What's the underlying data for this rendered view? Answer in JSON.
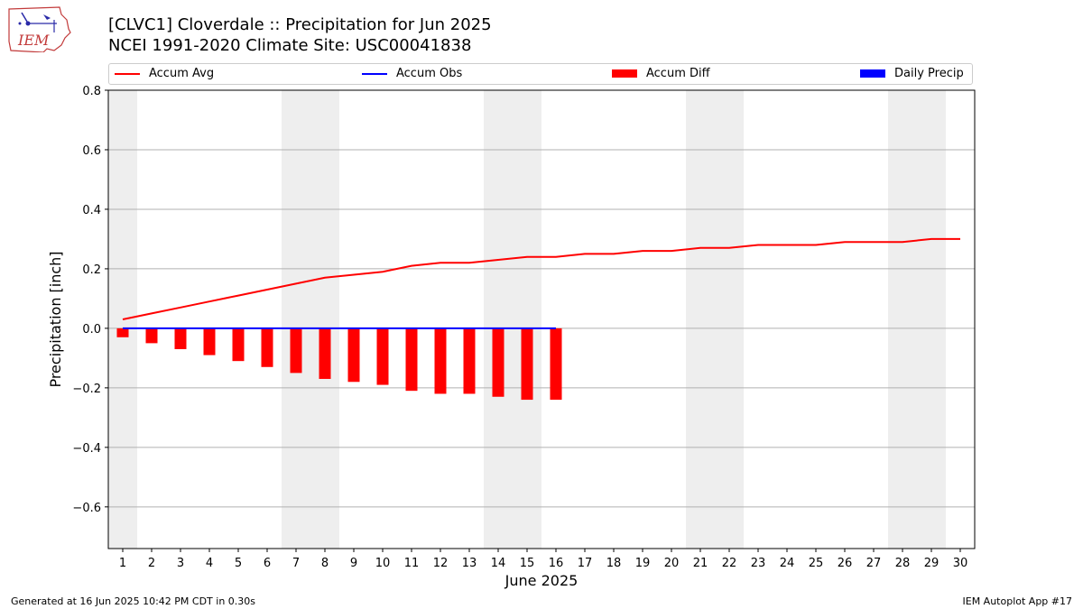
{
  "header": {
    "title_line1": "[CLVC1] Cloverdale :: Precipitation for Jun 2025",
    "title_line2": "NCEI 1991-2020 Climate Site: USC00041838",
    "logo_text": "IEM"
  },
  "legend": {
    "placement": "top",
    "items": [
      {
        "label": "Accum Avg",
        "kind": "line",
        "color": "#ff0000"
      },
      {
        "label": "Accum Obs",
        "kind": "line",
        "color": "#0000ff"
      },
      {
        "label": "Accum Diff",
        "kind": "box",
        "color": "#ff0000"
      },
      {
        "label": "Daily Precip",
        "kind": "box",
        "color": "#0000ff"
      }
    ]
  },
  "footer": {
    "left": "Generated at 16 Jun 2025 10:42 PM CDT in 0.30s",
    "right": "IEM Autoplot App #17"
  },
  "chart_data": {
    "type": "bar",
    "xlabel": "June 2025",
    "ylabel": "Precipitation [inch]",
    "xlim": [
      0.5,
      30.5
    ],
    "ylim": [
      -0.74,
      0.8
    ],
    "x": [
      1,
      2,
      3,
      4,
      5,
      6,
      7,
      8,
      9,
      10,
      11,
      12,
      13,
      14,
      15,
      16,
      17,
      18,
      19,
      20,
      21,
      22,
      23,
      24,
      25,
      26,
      27,
      28,
      29,
      30
    ],
    "yticks": [
      -0.6,
      -0.4,
      -0.2,
      0.0,
      0.2,
      0.4,
      0.6,
      0.8
    ],
    "ytick_labels": [
      "−0.6",
      "−0.4",
      "−0.2",
      "0.0",
      "0.2",
      "0.4",
      "0.6",
      "0.8"
    ],
    "grid": "horizontal",
    "weekend_shading": [
      [
        1,
        1
      ],
      [
        7,
        8
      ],
      [
        14,
        15
      ],
      [
        21,
        22
      ],
      [
        28,
        29
      ]
    ],
    "series": [
      {
        "name": "Accum Avg",
        "kind": "line",
        "color": "#ff0000",
        "x": [
          1,
          2,
          3,
          4,
          5,
          6,
          7,
          8,
          9,
          10,
          11,
          12,
          13,
          14,
          15,
          16,
          17,
          18,
          19,
          20,
          21,
          22,
          23,
          24,
          25,
          26,
          27,
          28,
          29,
          30
        ],
        "values": [
          0.03,
          0.05,
          0.07,
          0.09,
          0.11,
          0.13,
          0.15,
          0.17,
          0.18,
          0.19,
          0.21,
          0.22,
          0.22,
          0.23,
          0.24,
          0.24,
          0.25,
          0.25,
          0.26,
          0.26,
          0.27,
          0.27,
          0.28,
          0.28,
          0.28,
          0.29,
          0.29,
          0.29,
          0.3,
          0.3
        ]
      },
      {
        "name": "Accum Obs",
        "kind": "line",
        "color": "#0000ff",
        "x": [
          1,
          2,
          3,
          4,
          5,
          6,
          7,
          8,
          9,
          10,
          11,
          12,
          13,
          14,
          15,
          16
        ],
        "values": [
          0,
          0,
          0,
          0,
          0,
          0,
          0,
          0,
          0,
          0,
          0,
          0,
          0,
          0,
          0,
          0
        ]
      },
      {
        "name": "Accum Diff",
        "kind": "bar",
        "color": "#ff0000",
        "x": [
          1,
          2,
          3,
          4,
          5,
          6,
          7,
          8,
          9,
          10,
          11,
          12,
          13,
          14,
          15,
          16
        ],
        "values": [
          -0.03,
          -0.05,
          -0.07,
          -0.09,
          -0.11,
          -0.13,
          -0.15,
          -0.17,
          -0.18,
          -0.19,
          -0.21,
          -0.22,
          -0.22,
          -0.23,
          -0.24,
          -0.24
        ]
      },
      {
        "name": "Daily Precip",
        "kind": "bar",
        "color": "#0000ff",
        "x": [
          1,
          2,
          3,
          4,
          5,
          6,
          7,
          8,
          9,
          10,
          11,
          12,
          13,
          14,
          15,
          16
        ],
        "values": [
          0,
          0,
          0,
          0,
          0,
          0,
          0,
          0,
          0,
          0,
          0,
          0,
          0,
          0,
          0,
          0
        ]
      }
    ]
  }
}
